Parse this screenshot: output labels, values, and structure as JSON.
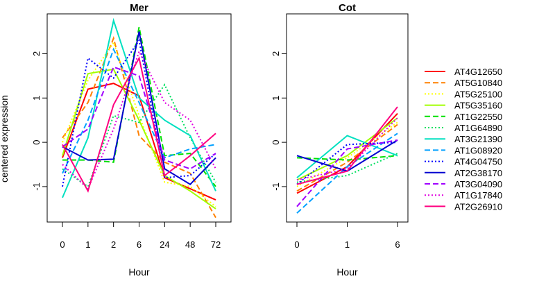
{
  "chart_data": [
    {
      "type": "line",
      "title": "Mer",
      "xlabel": "Hour",
      "ylabel": "centered expression",
      "categories": [
        "0",
        "1",
        "2",
        "6",
        "24",
        "48",
        "72"
      ],
      "ylim": [
        -1.8,
        2.9
      ],
      "yticks": [
        "-1",
        "0",
        "1",
        "2"
      ],
      "series": [
        {
          "name": "AT4G12650",
          "color": "#ff0000",
          "dash": "solid",
          "values": [
            -0.35,
            1.2,
            1.33,
            1.05,
            -0.8,
            -1.05,
            -1.3
          ]
        },
        {
          "name": "AT5G10840",
          "color": "#ff8000",
          "dash": "dashed",
          "values": [
            0.1,
            0.9,
            2.35,
            0.15,
            -0.45,
            -0.7,
            -1.7
          ]
        },
        {
          "name": "AT5G25100",
          "color": "#ffff00",
          "dash": "dotted",
          "values": [
            0.0,
            1.4,
            2.25,
            0.6,
            -0.9,
            -1.0,
            -1.45
          ]
        },
        {
          "name": "AT5G35160",
          "color": "#a0ff00",
          "dash": "solid",
          "values": [
            -0.3,
            1.55,
            1.65,
            0.5,
            -0.75,
            -1.1,
            -1.5
          ]
        },
        {
          "name": "AT1G22550",
          "color": "#00e000",
          "dash": "dashed",
          "values": [
            -0.4,
            -0.4,
            -0.45,
            2.6,
            -0.3,
            -0.25,
            -1.0
          ]
        },
        {
          "name": "AT1G64890",
          "color": "#00e060",
          "dash": "dotted",
          "values": [
            -0.6,
            -1.0,
            0.6,
            0.45,
            1.3,
            0.1,
            -0.9
          ]
        },
        {
          "name": "AT3G21390",
          "color": "#00e0c0",
          "dash": "solid",
          "values": [
            -1.25,
            0.1,
            2.75,
            1.0,
            0.5,
            0.15,
            -1.1
          ]
        },
        {
          "name": "AT1G08920",
          "color": "#00a0ff",
          "dash": "dashed",
          "values": [
            -0.7,
            0.5,
            2.1,
            0.9,
            -0.35,
            -0.15,
            -0.05
          ]
        },
        {
          "name": "AT4G04750",
          "color": "#0000ff",
          "dash": "dotted",
          "values": [
            -1.0,
            1.9,
            1.45,
            2.3,
            -0.8,
            -0.75,
            -0.25
          ]
        },
        {
          "name": "AT2G38170",
          "color": "#0000d0",
          "dash": "solid",
          "values": [
            -0.1,
            -0.4,
            -0.38,
            2.5,
            -0.6,
            -0.95,
            -0.35
          ]
        },
        {
          "name": "AT3G04090",
          "color": "#a000ff",
          "dash": "dashed",
          "values": [
            -0.1,
            0.3,
            1.7,
            1.5,
            -0.4,
            -0.6,
            -0.25
          ]
        },
        {
          "name": "AT1G17840",
          "color": "#e000e0",
          "dash": "dotted",
          "values": [
            -0.5,
            -1.05,
            0.3,
            2.05,
            0.9,
            0.5,
            -0.6
          ]
        },
        {
          "name": "AT2G26910",
          "color": "#ff0080",
          "dash": "solid",
          "values": [
            -0.05,
            -1.1,
            0.85,
            1.9,
            -0.75,
            -0.3,
            0.2
          ]
        }
      ]
    },
    {
      "type": "line",
      "title": "Cot",
      "xlabel": "Hour",
      "ylabel": "",
      "categories": [
        "0",
        "1",
        "6"
      ],
      "ylim": [
        -1.8,
        2.9
      ],
      "yticks": [
        "-1",
        "0",
        "1",
        "2"
      ],
      "series": [
        {
          "name": "AT4G12650",
          "color": "#ff0000",
          "dash": "solid",
          "values": [
            -1.15,
            -0.55,
            0.65
          ]
        },
        {
          "name": "AT5G10840",
          "color": "#ff8000",
          "dash": "dashed",
          "values": [
            -1.1,
            -0.45,
            0.4
          ]
        },
        {
          "name": "AT5G25100",
          "color": "#ffff00",
          "dash": "dotted",
          "values": [
            -1.0,
            -0.35,
            0.45
          ]
        },
        {
          "name": "AT5G35160",
          "color": "#a0ff00",
          "dash": "solid",
          "values": [
            -0.85,
            -0.3,
            0.55
          ]
        },
        {
          "name": "AT1G22550",
          "color": "#00e000",
          "dash": "dashed",
          "values": [
            -0.35,
            -0.4,
            -0.3
          ]
        },
        {
          "name": "AT1G64890",
          "color": "#00e060",
          "dash": "dotted",
          "values": [
            -0.9,
            -0.75,
            -0.25
          ]
        },
        {
          "name": "AT3G21390",
          "color": "#00e0c0",
          "dash": "solid",
          "values": [
            -0.8,
            0.15,
            -0.3
          ]
        },
        {
          "name": "AT1G08920",
          "color": "#00a0ff",
          "dash": "dashed",
          "values": [
            -1.6,
            -0.55,
            0.2
          ]
        },
        {
          "name": "AT4G04750",
          "color": "#0000ff",
          "dash": "dotted",
          "values": [
            -0.95,
            -0.05,
            0.0
          ]
        },
        {
          "name": "AT2G38170",
          "color": "#0000d0",
          "dash": "solid",
          "values": [
            -0.3,
            -0.65,
            0.05
          ]
        },
        {
          "name": "AT3G04090",
          "color": "#a000ff",
          "dash": "dashed",
          "values": [
            -1.45,
            -0.15,
            0.05
          ]
        },
        {
          "name": "AT1G17840",
          "color": "#e000e0",
          "dash": "dotted",
          "values": [
            -0.85,
            -0.6,
            0.55
          ]
        },
        {
          "name": "AT2G26910",
          "color": "#ff0080",
          "dash": "solid",
          "values": [
            -0.95,
            -0.65,
            0.8
          ]
        }
      ]
    }
  ]
}
